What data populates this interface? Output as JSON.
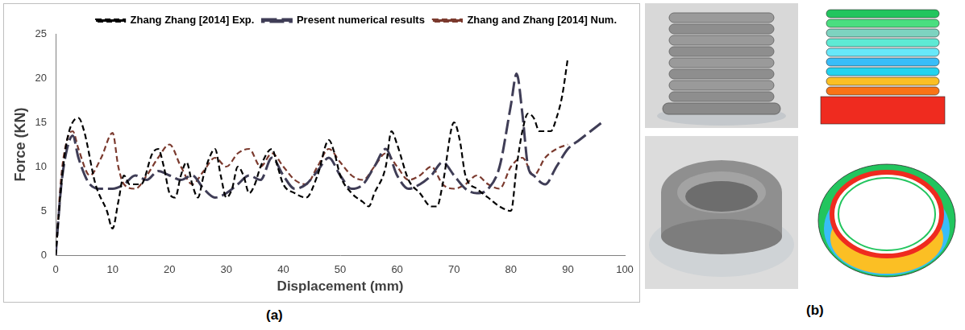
{
  "chart_data": {
    "type": "line",
    "x_label": "Displacement (mm)",
    "y_label": "Force (KN)",
    "xlim": [
      0,
      100
    ],
    "xticks": [
      0,
      10,
      20,
      30,
      40,
      50,
      60,
      70,
      80,
      90,
      100
    ],
    "ylim": [
      0,
      25
    ],
    "yticks": [
      0,
      5,
      10,
      15,
      20,
      25
    ],
    "grid": false,
    "legend": "top",
    "series": [
      {
        "name": "Zhang Zhang [2014] Exp.",
        "color": "#000000",
        "line_style": "dashed",
        "x": [
          0,
          1,
          2,
          4,
          5,
          7,
          9,
          10,
          11,
          12,
          13,
          15,
          17,
          18,
          19,
          20,
          21,
          22,
          23,
          24,
          25,
          26,
          27,
          28,
          29,
          30,
          31,
          32,
          33,
          34,
          35,
          36,
          38,
          39,
          40,
          42,
          44,
          46,
          48,
          49,
          50,
          52,
          54,
          55,
          56,
          58,
          59,
          60,
          62,
          64,
          66,
          67,
          68,
          70,
          71,
          72,
          74,
          76,
          78,
          80,
          81,
          82,
          83,
          84,
          85,
          86,
          87,
          88,
          89,
          90
        ],
        "values": [
          0,
          8,
          13,
          15.5,
          14,
          8,
          5,
          3,
          6,
          9,
          8,
          8,
          11.5,
          12,
          10,
          7,
          6.5,
          9,
          10.5,
          8,
          6.5,
          9,
          11,
          12,
          9,
          6.5,
          7.5,
          10,
          9,
          7,
          8,
          10,
          12,
          10,
          8,
          7,
          6.5,
          9,
          13,
          11.5,
          9,
          7,
          6,
          5.5,
          7,
          10,
          14,
          12.5,
          8.5,
          7,
          5.5,
          5.5,
          8,
          15,
          13,
          9,
          7.5,
          6.5,
          5.5,
          5,
          10,
          14,
          16,
          15.5,
          14,
          14,
          14,
          15.5,
          18,
          22.3
        ]
      },
      {
        "name": "Present numerical results",
        "color": "#3f3d56",
        "line_style": "long_dash",
        "x": [
          0,
          1,
          2,
          3,
          4,
          6,
          8,
          10,
          12,
          14,
          16,
          18,
          20,
          22,
          24,
          26,
          28,
          30,
          32,
          34,
          36,
          38,
          40,
          42,
          44,
          46,
          48,
          50,
          52,
          54,
          56,
          58,
          60,
          62,
          64,
          66,
          68,
          70,
          72,
          74,
          76,
          78,
          80,
          81,
          82,
          83,
          84,
          86,
          88,
          90,
          92,
          94,
          96
        ],
        "values": [
          0,
          8,
          12,
          13.5,
          11,
          8,
          7.5,
          7.5,
          8,
          9,
          8.5,
          9.5,
          9,
          8.5,
          9,
          7.5,
          6.5,
          7,
          8,
          9,
          8.5,
          11,
          9,
          7.5,
          8,
          9.5,
          11,
          9,
          7.5,
          8,
          10,
          12,
          9,
          7.5,
          8,
          9,
          10.5,
          9,
          7.5,
          7,
          7.5,
          10,
          17,
          20.5,
          16,
          10,
          9,
          8,
          10,
          12,
          13,
          14,
          15
        ]
      },
      {
        "name": "Zhang and Zhang [2014] Num.",
        "color": "#7b3a2e",
        "line_style": "dashed",
        "x": [
          0,
          1,
          2,
          3,
          4,
          6,
          8,
          10,
          11,
          12,
          14,
          16,
          18,
          20,
          22,
          24,
          26,
          28,
          30,
          32,
          34,
          36,
          38,
          40,
          42,
          44,
          46,
          48,
          50,
          52,
          54,
          56,
          58,
          60,
          62,
          64,
          66,
          68,
          70,
          72,
          74,
          76,
          78,
          80,
          82,
          84,
          86,
          88,
          90
        ],
        "values": [
          0,
          9,
          13,
          14,
          12,
          9,
          11,
          13.8,
          10,
          8,
          7.5,
          9,
          11,
          12.5,
          10,
          8,
          9.5,
          11,
          10,
          11.5,
          12,
          10,
          11.5,
          10,
          8.5,
          8,
          10,
          12,
          10.5,
          9,
          8.5,
          10,
          11.5,
          10,
          8.5,
          9,
          10,
          8,
          7.5,
          8,
          9,
          8,
          7.5,
          10,
          11,
          9,
          11,
          12,
          12.5
        ]
      }
    ]
  },
  "panel_labels": [
    "(a)",
    "(b)"
  ]
}
